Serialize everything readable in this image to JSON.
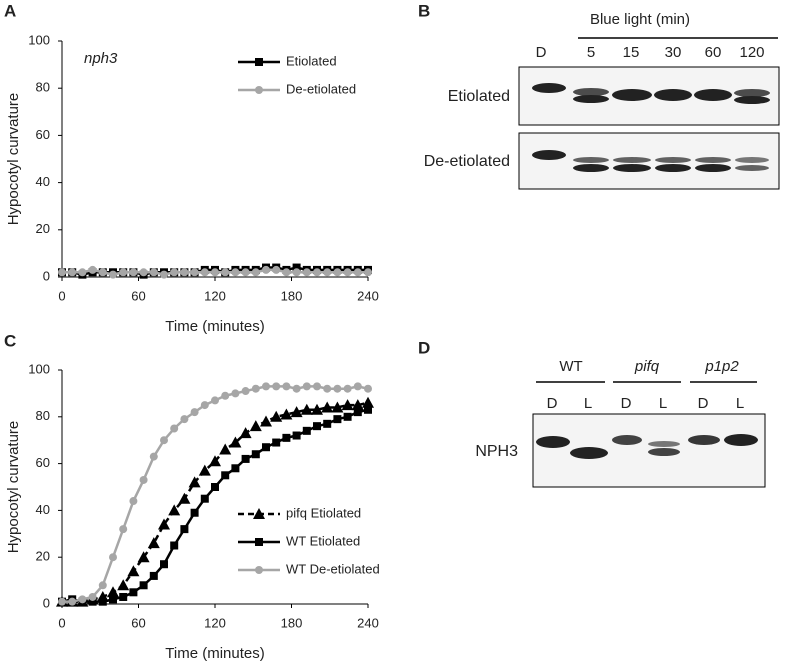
{
  "chart_data": [
    {
      "type": "line",
      "label": "A",
      "annotation": "nph3",
      "xlabel": "Time (minutes)",
      "ylabel": "Hypocotyl curvature",
      "xlim": [
        0,
        240
      ],
      "xticks": [
        0,
        60,
        120,
        180,
        240
      ],
      "ylim": [
        0,
        100
      ],
      "yticks": [
        0,
        20,
        40,
        60,
        80,
        100
      ],
      "legend": "upper right",
      "x": [
        0,
        8,
        16,
        24,
        32,
        40,
        48,
        56,
        64,
        72,
        80,
        88,
        96,
        104,
        112,
        120,
        128,
        136,
        144,
        152,
        160,
        168,
        176,
        184,
        192,
        200,
        208,
        216,
        224,
        232,
        240
      ],
      "series": [
        {
          "name": "Etiolated",
          "color": "#000000",
          "marker": "square",
          "dash": false,
          "values": [
            2,
            2,
            1,
            2,
            2,
            2,
            2,
            2,
            1,
            2,
            2,
            2,
            2,
            2,
            3,
            3,
            2,
            3,
            3,
            3,
            4,
            4,
            3,
            4,
            3,
            3,
            3,
            3,
            3,
            3,
            3
          ]
        },
        {
          "name": "De-etiolated",
          "color": "#a6a6a6",
          "marker": "circle",
          "dash": false,
          "values": [
            2,
            2,
            2,
            3,
            2,
            1,
            2,
            2,
            2,
            2,
            1,
            2,
            2,
            2,
            2,
            2,
            2,
            2,
            2,
            2,
            3,
            3,
            2,
            2,
            2,
            2,
            2,
            2,
            2,
            2,
            2
          ]
        }
      ]
    },
    {
      "type": "line",
      "label": "C",
      "xlabel": "Time (minutes)",
      "ylabel": "Hypocotyl curvature",
      "xlim": [
        0,
        240
      ],
      "xticks": [
        0,
        60,
        120,
        180,
        240
      ],
      "ylim": [
        0,
        100
      ],
      "yticks": [
        0,
        20,
        40,
        60,
        80,
        100
      ],
      "legend": "lower right",
      "x": [
        0,
        8,
        16,
        24,
        32,
        40,
        48,
        56,
        64,
        72,
        80,
        88,
        96,
        104,
        112,
        120,
        128,
        136,
        144,
        152,
        160,
        168,
        176,
        184,
        192,
        200,
        208,
        216,
        224,
        232,
        240
      ],
      "series": [
        {
          "name": "pifq Etiolated",
          "color": "#000000",
          "marker": "triangle",
          "dash": true,
          "values": [
            1,
            1,
            1,
            2,
            3,
            5,
            8,
            14,
            20,
            26,
            34,
            40,
            45,
            52,
            57,
            61,
            66,
            69,
            73,
            76,
            78,
            80,
            81,
            82,
            83,
            83,
            84,
            84,
            85,
            85,
            86
          ]
        },
        {
          "name": "WT Etiolated",
          "color": "#000000",
          "marker": "square",
          "dash": false,
          "values": [
            1,
            2,
            1,
            1,
            1,
            2,
            3,
            5,
            8,
            12,
            17,
            25,
            32,
            39,
            45,
            50,
            55,
            58,
            62,
            64,
            67,
            69,
            71,
            72,
            74,
            76,
            77,
            79,
            80,
            82,
            83
          ]
        },
        {
          "name": "WT De-etiolated",
          "color": "#a6a6a6",
          "marker": "circle",
          "dash": false,
          "values": [
            1,
            1,
            2,
            3,
            8,
            20,
            32,
            44,
            53,
            63,
            70,
            75,
            79,
            82,
            85,
            87,
            89,
            90,
            91,
            92,
            93,
            93,
            93,
            92,
            93,
            93,
            92,
            92,
            92,
            93,
            92
          ]
        }
      ]
    }
  ],
  "blots": [
    {
      "label": "B",
      "header": "Blue light (min)",
      "lanes": [
        "D",
        "5",
        "15",
        "30",
        "60",
        "120"
      ],
      "rows": [
        "Etiolated",
        "De-etiolated"
      ]
    },
    {
      "label": "D",
      "groups": [
        {
          "name": "WT",
          "lanes": [
            "D",
            "L"
          ]
        },
        {
          "name": "pifq",
          "lanes": [
            "D",
            "L"
          ]
        },
        {
          "name": "p1p2",
          "lanes": [
            "D",
            "L"
          ]
        }
      ],
      "rows": [
        "NPH3"
      ]
    }
  ]
}
